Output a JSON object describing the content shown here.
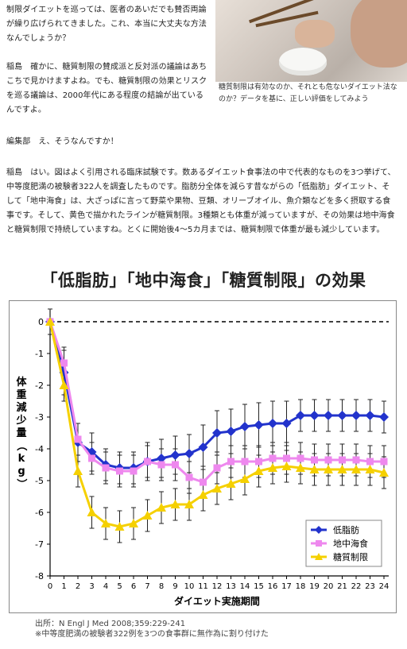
{
  "article": {
    "para1": "制限ダイエットを巡っては、医者のあいだでも賛否両論が繰り広げられてきました。これ、本当に大丈夫な方法なんでしょうか？",
    "para2": "稲島　確かに、糖質制限の賛成派と反対派の議論はあちこちで見かけますよね。でも、糖質制限の効果とリスクを巡る議論は、2000年代にある程度の結論が出ているんですよ。",
    "para3": "編集部　え、そうなんですか！",
    "para4": "稲島　はい。図はよく引用される臨床試験です。数あるダイエット食事法の中で代表的なものを3つ挙げて、中等度肥満の被験者322人を調査したものです。脂肪分全体を減らす昔ながらの「低脂肪」ダイエット、そして「地中海食」は、大ざっぱに言って野菜や果物、豆類、オリーブオイル、魚介類などを多く摂取する食事です。そして、黄色で描かれたラインが糖質制限。3種類とも体重が減っていますが、その効果は地中海食と糖質制限で持続していますね。とくに開始後4〜5カ月までは、糖質制限で体重が最も減少しています。"
  },
  "photo": {
    "icon": "photo-eating-rice",
    "caption": "糖質制限は有効なのか、それとも危ないダイエット法なのか？データを基に、正しい評価をしてみよう"
  },
  "chart_data": {
    "type": "line",
    "title": "「低脂肪」「地中海食」「糖質制限」の効果",
    "xlabel": "ダイエット実施期間",
    "ylabel": "体重減少量（kg）",
    "xlim": [
      0,
      24
    ],
    "ylim": [
      -8,
      0
    ],
    "x": [
      0,
      1,
      2,
      3,
      4,
      5,
      6,
      7,
      8,
      9,
      10,
      11,
      12,
      13,
      14,
      15,
      16,
      17,
      18,
      19,
      20,
      21,
      22,
      23,
      24
    ],
    "yticks": [
      0,
      -1,
      -2,
      -3,
      -4,
      -5,
      -6,
      -7,
      -8
    ],
    "legend_position": "lower-right",
    "series": [
      {
        "name": "低脂肪",
        "color": "#2233cc",
        "marker": "diamond",
        "values": [
          0,
          -1.6,
          -3.8,
          -4.1,
          -4.5,
          -4.6,
          -4.6,
          -4.4,
          -4.3,
          -4.2,
          -4.15,
          -3.95,
          -3.5,
          -3.45,
          -3.3,
          -3.25,
          -3.2,
          -3.2,
          -2.95,
          -2.95,
          -2.95,
          -2.95,
          -2.95,
          -2.95,
          -3.0
        ],
        "err": [
          0.4,
          0.7,
          0.6,
          0.6,
          0.5,
          0.5,
          0.5,
          0.6,
          0.6,
          0.6,
          0.6,
          0.7,
          0.7,
          0.7,
          0.7,
          0.7,
          0.7,
          0.7,
          0.5,
          0.5,
          0.5,
          0.5,
          0.5,
          0.5,
          0.5
        ]
      },
      {
        "name": "地中海食",
        "color": "#ee88ee",
        "marker": "square",
        "values": [
          0,
          -1.3,
          -3.7,
          -4.3,
          -4.6,
          -4.7,
          -4.7,
          -4.4,
          -4.5,
          -4.5,
          -4.9,
          -5.05,
          -4.6,
          -4.4,
          -4.4,
          -4.4,
          -4.3,
          -4.3,
          -4.3,
          -4.35,
          -4.35,
          -4.35,
          -4.35,
          -4.4,
          -4.4
        ],
        "err": [
          0.4,
          0.5,
          0.5,
          0.5,
          0.5,
          0.5,
          0.5,
          0.5,
          0.5,
          0.5,
          0.5,
          0.5,
          0.5,
          0.5,
          0.5,
          0.5,
          0.5,
          0.5,
          0.5,
          0.5,
          0.5,
          0.5,
          0.5,
          0.5,
          0.5
        ]
      },
      {
        "name": "糖質制限",
        "color": "#f5d000",
        "marker": "triangle",
        "values": [
          0,
          -2.0,
          -4.7,
          -6.0,
          -6.35,
          -6.45,
          -6.35,
          -6.1,
          -5.85,
          -5.75,
          -5.75,
          -5.45,
          -5.25,
          -5.1,
          -4.95,
          -4.7,
          -4.6,
          -4.55,
          -4.6,
          -4.65,
          -4.65,
          -4.65,
          -4.65,
          -4.65,
          -4.75
        ],
        "err": [
          0.4,
          0.5,
          0.5,
          0.5,
          0.5,
          0.5,
          0.5,
          0.5,
          0.5,
          0.5,
          0.5,
          0.5,
          0.5,
          0.5,
          0.5,
          0.5,
          0.5,
          0.5,
          0.5,
          0.5,
          0.5,
          0.5,
          0.5,
          0.5,
          0.5
        ]
      }
    ]
  },
  "source": {
    "line1": "出所：N Engl J Med 2008;359:229-241",
    "line2": "※中等度肥満の被験者322例を3つの食事群に無作為に割り付けた"
  }
}
